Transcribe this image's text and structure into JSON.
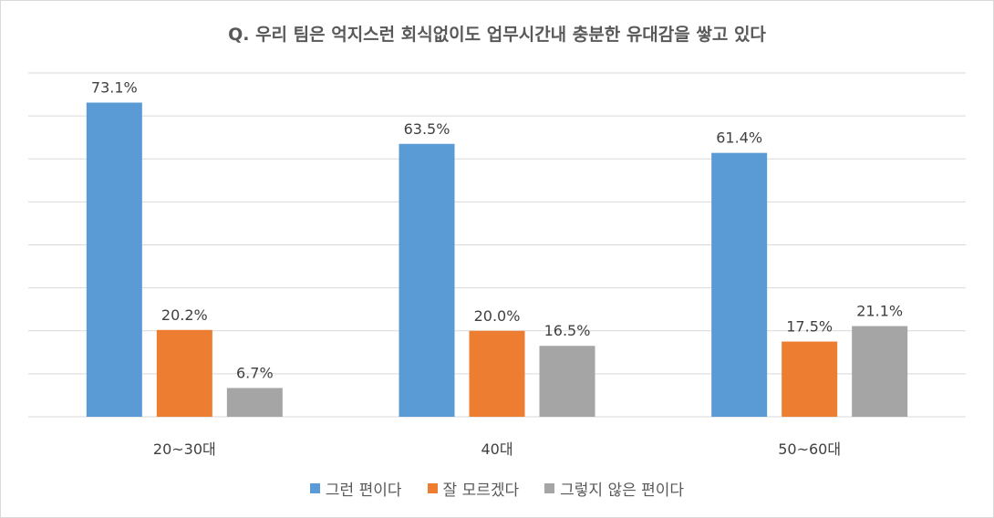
{
  "chart_data": {
    "type": "bar",
    "title": "Q. 우리 팀은 억지스런 회식없이도 업무시간내 충분한 유대감을 쌓고 있다",
    "categories": [
      "20~30대",
      "40대",
      "50~60대"
    ],
    "series": [
      {
        "name": "그런 편이다",
        "values": [
          73.1,
          63.5,
          61.4
        ],
        "labels": [
          "73.1%",
          "63.5%",
          "61.4%"
        ],
        "color": "#5b9bd5"
      },
      {
        "name": "잘 모르겠다",
        "values": [
          20.2,
          20.0,
          17.5
        ],
        "labels": [
          "20.2%",
          "20.0%",
          "17.5%"
        ],
        "color": "#ed7d31"
      },
      {
        "name": "그렇지 않은 편이다",
        "values": [
          6.7,
          16.5,
          21.1
        ],
        "labels": [
          "6.7%",
          "16.5%",
          "21.1%"
        ],
        "color": "#a5a5a5"
      }
    ],
    "ylim": [
      0,
      80
    ],
    "grid": true,
    "legend_position": "bottom",
    "xlabel": "",
    "ylabel": ""
  }
}
